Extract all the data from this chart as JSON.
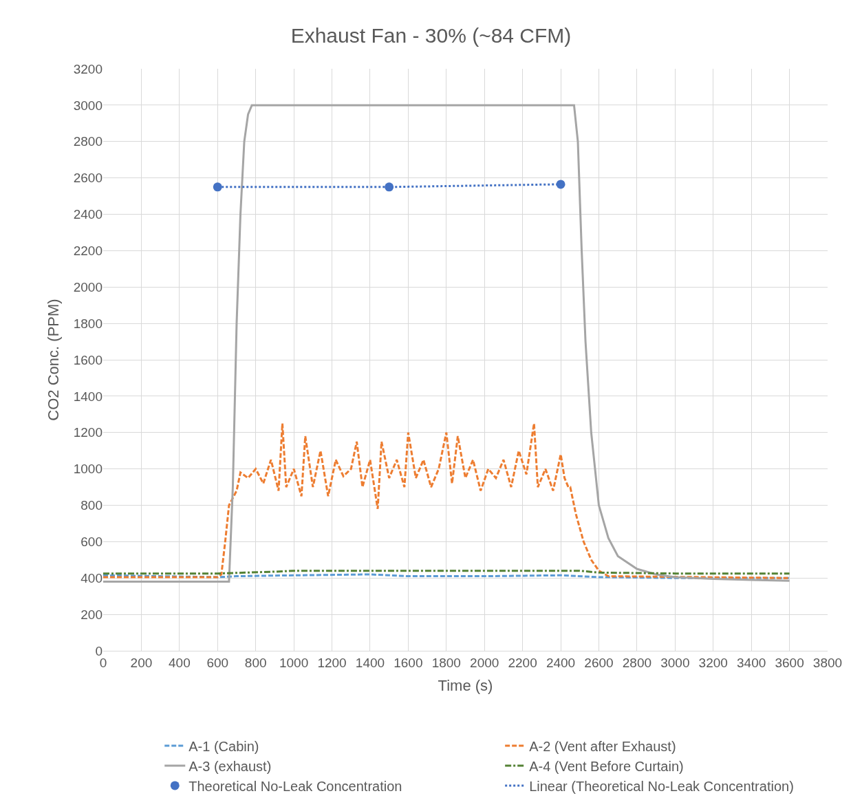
{
  "chart_data": {
    "type": "line",
    "title": "Exhaust Fan - 30% (~84 CFM)",
    "xlabel": "Time (s)",
    "ylabel": "CO2 Conc. (PPM)",
    "xlim": [
      0,
      3800
    ],
    "xticks": [
      0,
      200,
      400,
      600,
      800,
      1000,
      1200,
      1400,
      1600,
      1800,
      2000,
      2200,
      2400,
      2600,
      2800,
      3000,
      3200,
      3400,
      3600,
      3800
    ],
    "ylim": [
      0,
      3200
    ],
    "yticks": [
      0,
      200,
      400,
      600,
      800,
      1000,
      1200,
      1400,
      1600,
      1800,
      2000,
      2200,
      2400,
      2600,
      2800,
      3000,
      3200
    ],
    "grid": true,
    "legend": "bottom",
    "series": [
      {
        "name": "A-1 (Cabin)",
        "color": "#5b9bd5",
        "line_style": "dashed",
        "x": [
          0,
          600,
          700,
          1000,
          1400,
          1600,
          2000,
          2400,
          2600,
          3000,
          3600
        ],
        "values": [
          415,
          405,
          410,
          415,
          420,
          410,
          410,
          415,
          405,
          400,
          400
        ]
      },
      {
        "name": "A-2 (Vent after Exhaust)",
        "color": "#ed7d31",
        "line_style": "dashed",
        "x": [
          0,
          600,
          620,
          640,
          660,
          700,
          720,
          760,
          800,
          840,
          880,
          920,
          940,
          960,
          1000,
          1040,
          1060,
          1100,
          1140,
          1180,
          1220,
          1260,
          1300,
          1330,
          1360,
          1400,
          1440,
          1460,
          1500,
          1540,
          1580,
          1600,
          1640,
          1680,
          1720,
          1760,
          1800,
          1830,
          1860,
          1900,
          1940,
          1980,
          2020,
          2060,
          2100,
          2140,
          2180,
          2220,
          2260,
          2280,
          2320,
          2360,
          2400,
          2420,
          2440,
          2450,
          2480,
          2520,
          2560,
          2600,
          2650,
          3600
        ],
        "values": [
          405,
          405,
          420,
          600,
          800,
          880,
          980,
          950,
          1000,
          920,
          1050,
          880,
          1250,
          900,
          1000,
          850,
          1180,
          900,
          1100,
          850,
          1050,
          960,
          1000,
          1150,
          900,
          1050,
          780,
          1150,
          950,
          1050,
          900,
          1200,
          950,
          1050,
          900,
          1000,
          1200,
          920,
          1180,
          950,
          1050,
          880,
          1000,
          950,
          1050,
          900,
          1100,
          970,
          1250,
          900,
          1000,
          880,
          1080,
          950,
          900,
          900,
          750,
          600,
          500,
          440,
          410,
          400
        ]
      },
      {
        "name": "A-3 (exhaust)",
        "color": "#a5a5a5",
        "line_style": "solid",
        "x": [
          0,
          660,
          680,
          700,
          720,
          740,
          760,
          780,
          2470,
          2490,
          2510,
          2530,
          2560,
          2600,
          2650,
          2700,
          2800,
          2900,
          3000,
          3200,
          3400,
          3600
        ],
        "values": [
          380,
          380,
          900,
          1800,
          2400,
          2800,
          2950,
          3000,
          3000,
          2800,
          2200,
          1700,
          1200,
          800,
          620,
          520,
          450,
          420,
          405,
          395,
          390,
          385
        ]
      },
      {
        "name": "A-4 (Vent Before Curtain)",
        "color": "#548235",
        "line_style": "dashdot",
        "x": [
          0,
          600,
          900,
          1000,
          1500,
          2000,
          2500,
          2600,
          3000,
          3600
        ],
        "values": [
          425,
          425,
          435,
          440,
          440,
          440,
          440,
          430,
          425,
          425
        ]
      },
      {
        "name": "Theoretical No-Leak Concentration",
        "type": "scatter",
        "color": "#4472c4",
        "marker": "circle",
        "x": [
          600,
          1500,
          2400
        ],
        "values": [
          2550,
          2550,
          2565
        ]
      },
      {
        "name": "Linear (Theoretical No-Leak Concentration)",
        "color": "#4472c4",
        "line_style": "dotted",
        "x": [
          600,
          1500,
          2400
        ],
        "values": [
          2550,
          2550,
          2565
        ]
      }
    ]
  }
}
